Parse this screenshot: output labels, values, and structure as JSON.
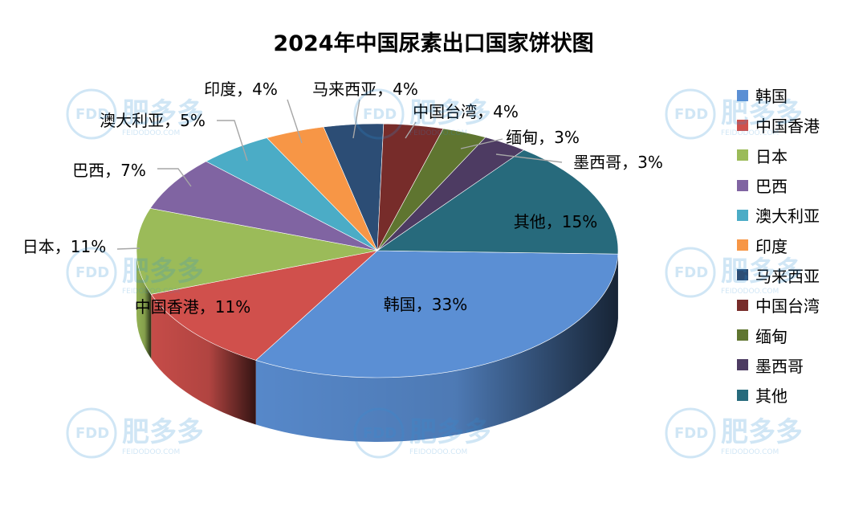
{
  "chart_data": {
    "type": "pie",
    "title": "2024年中国尿素出口国家饼状图",
    "slices": [
      {
        "name": "韩国",
        "value": 33,
        "label": "韩国，33%",
        "color": "#5b8fd4"
      },
      {
        "name": "中国香港",
        "value": 11,
        "label": "中国香港，11%",
        "color": "#d0504c"
      },
      {
        "name": "日本",
        "value": 11,
        "label": "日本，11%",
        "color": "#9bbb59"
      },
      {
        "name": "巴西",
        "value": 7,
        "label": "巴西，7%",
        "color": "#8064a2"
      },
      {
        "name": "澳大利亚",
        "value": 5,
        "label": "澳大利亚，5%",
        "color": "#4bacc6"
      },
      {
        "name": "印度",
        "value": 4,
        "label": "印度，4%",
        "color": "#f79646"
      },
      {
        "name": "马来西亚",
        "value": 4,
        "label": "马来西亚，4%",
        "color": "#2c4d75"
      },
      {
        "name": "中国台湾",
        "value": 4,
        "label": "中国台湾，4%",
        "color": "#772c2a"
      },
      {
        "name": "缅甸",
        "value": 3,
        "label": "缅甸，3%",
        "color": "#5f7530"
      },
      {
        "name": "墨西哥",
        "value": 3,
        "label": "墨西哥，3%",
        "color": "#4d3b62"
      },
      {
        "name": "其他",
        "value": 15,
        "label": "其他，15%",
        "color": "#276a7c"
      }
    ],
    "legend_position": "right",
    "three_d": true
  },
  "watermark": {
    "brand": "FDD",
    "name": "肥多多",
    "site": "FEIDODOO.COM"
  }
}
